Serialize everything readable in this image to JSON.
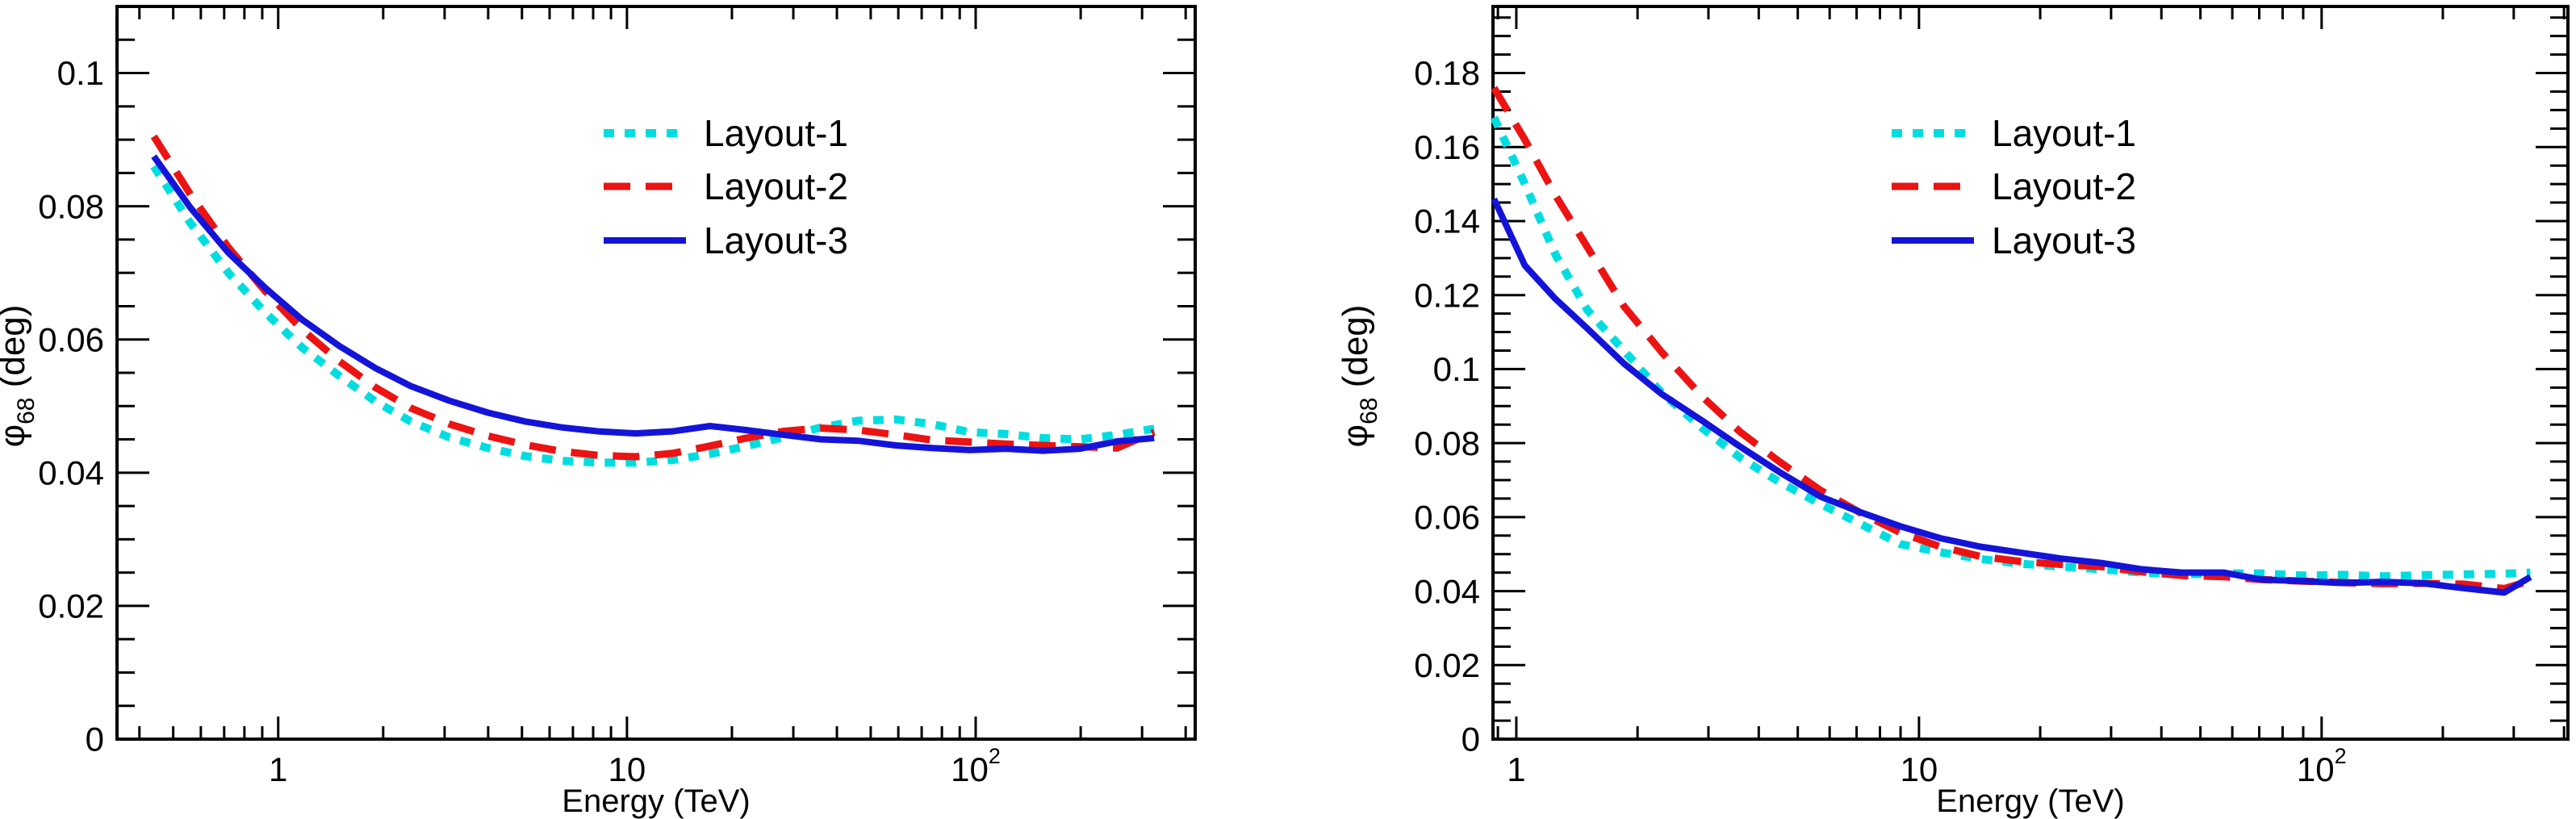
{
  "page": {
    "background": "#ffffff"
  },
  "chart_data": [
    {
      "type": "line",
      "panel": "left",
      "title": "",
      "xlabel": "Energy (TeV)",
      "ylabel": {
        "symbol": "φ",
        "subscript": "68",
        "unit": " (deg)"
      },
      "x_scale": "log",
      "xlim": [
        0.345,
        426
      ],
      "ylim": [
        0,
        0.11
      ],
      "grid": false,
      "legend_position": "upper-middle",
      "x_major_ticks": [
        {
          "v": 1,
          "base": "1",
          "exp": ""
        },
        {
          "v": 10,
          "base": "10",
          "exp": ""
        },
        {
          "v": 100,
          "base": "10",
          "exp": "2"
        }
      ],
      "y_major_step": 0.02,
      "y_minor_step": 0.005,
      "y_labels": [
        {
          "v": 0,
          "t": "0"
        },
        {
          "v": 0.02,
          "t": "0.02"
        },
        {
          "v": 0.04,
          "t": "0.04"
        },
        {
          "v": 0.06,
          "t": "0.06"
        },
        {
          "v": 0.08,
          "t": "0.08"
        },
        {
          "v": 0.1,
          "t": "0.1"
        }
      ],
      "x": [
        0.44,
        0.56,
        0.72,
        0.92,
        1.17,
        1.5,
        1.9,
        2.4,
        3.1,
        4.0,
        5.1,
        6.5,
        8.3,
        10.6,
        13.5,
        17.3,
        22,
        28,
        36,
        46,
        59,
        75,
        96,
        122,
        156,
        199,
        254,
        325
      ],
      "series": [
        {
          "name": "Layout-1",
          "color": "#00DDE0",
          "style": "dotted",
          "values": [
            0.086,
            0.0775,
            0.07,
            0.064,
            0.0588,
            0.0545,
            0.0507,
            0.0477,
            0.0453,
            0.0437,
            0.0425,
            0.0418,
            0.0415,
            0.0415,
            0.0419,
            0.0428,
            0.044,
            0.0453,
            0.0468,
            0.0478,
            0.048,
            0.0473,
            0.0461,
            0.0458,
            0.0452,
            0.045,
            0.0457,
            0.0466
          ]
        },
        {
          "name": "Layout-2",
          "color": "#EC1313",
          "style": "dashed",
          "values": [
            0.0905,
            0.0818,
            0.0738,
            0.0672,
            0.0615,
            0.0567,
            0.0528,
            0.0497,
            0.0473,
            0.0455,
            0.0442,
            0.0432,
            0.0426,
            0.0424,
            0.0429,
            0.044,
            0.0452,
            0.0462,
            0.0467,
            0.0464,
            0.0457,
            0.0449,
            0.0446,
            0.0443,
            0.0441,
            0.0439,
            0.0437,
            0.0461
          ]
        },
        {
          "name": "Layout-3",
          "color": "#1414D9",
          "style": "solid",
          "values": [
            0.0875,
            0.0798,
            0.073,
            0.0677,
            0.063,
            0.059,
            0.0557,
            0.053,
            0.0508,
            0.049,
            0.0477,
            0.0468,
            0.0462,
            0.0459,
            0.0462,
            0.047,
            0.0464,
            0.0457,
            0.045,
            0.0448,
            0.0441,
            0.0437,
            0.0434,
            0.0436,
            0.0433,
            0.0436,
            0.0447,
            0.0452
          ]
        }
      ]
    },
    {
      "type": "line",
      "panel": "right",
      "title": "",
      "xlabel": "Energy (TeV)",
      "ylabel": {
        "symbol": "φ",
        "subscript": "68",
        "unit": " (deg)"
      },
      "x_scale": "log",
      "xlim": [
        0.875,
        409
      ],
      "ylim": [
        0,
        0.198
      ],
      "grid": false,
      "legend_position": "upper-middle",
      "x_major_ticks": [
        {
          "v": 1,
          "base": "1",
          "exp": ""
        },
        {
          "v": 10,
          "base": "10",
          "exp": ""
        },
        {
          "v": 100,
          "base": "10",
          "exp": "2"
        }
      ],
      "y_major_step": 0.02,
      "y_minor_step": 0.005,
      "y_labels": [
        {
          "v": 0,
          "t": "0"
        },
        {
          "v": 0.02,
          "t": "0.02"
        },
        {
          "v": 0.04,
          "t": "0.04"
        },
        {
          "v": 0.06,
          "t": "0.06"
        },
        {
          "v": 0.08,
          "t": "0.08"
        },
        {
          "v": 0.1,
          "t": "0.1"
        },
        {
          "v": 0.12,
          "t": "0.12"
        },
        {
          "v": 0.14,
          "t": "0.14"
        },
        {
          "v": 0.16,
          "t": "0.16"
        },
        {
          "v": 0.18,
          "t": "0.18"
        }
      ],
      "x": [
        0.88,
        1.05,
        1.25,
        1.5,
        1.85,
        2.3,
        2.9,
        3.6,
        4.5,
        5.7,
        7.2,
        9.0,
        11.3,
        14.2,
        17.9,
        22.5,
        28.4,
        35.7,
        45,
        57,
        71,
        90,
        113,
        142,
        179,
        225,
        284,
        330
      ],
      "series": [
        {
          "name": "Layout-1",
          "color": "#00DDE0",
          "style": "dotted",
          "values": [
            0.168,
            0.15,
            0.131,
            0.116,
            0.105,
            0.0935,
            0.084,
            0.076,
            0.0695,
            0.0635,
            0.058,
            0.0527,
            0.0505,
            0.0487,
            0.0474,
            0.0466,
            0.0459,
            0.045,
            0.0445,
            0.0448,
            0.0448,
            0.0442,
            0.0444,
            0.044,
            0.0443,
            0.0445,
            0.0447,
            0.045
          ]
        },
        {
          "name": "Layout-2",
          "color": "#EC1313",
          "style": "dashed",
          "values": [
            0.176,
            0.162,
            0.147,
            0.133,
            0.117,
            0.1045,
            0.0925,
            0.083,
            0.075,
            0.0672,
            0.061,
            0.0558,
            0.052,
            0.0494,
            0.048,
            0.0472,
            0.0466,
            0.0452,
            0.0442,
            0.0439,
            0.0431,
            0.0427,
            0.0423,
            0.042,
            0.0421,
            0.0419,
            0.0407,
            0.0428
          ]
        },
        {
          "name": "Layout-3",
          "color": "#1414D9",
          "style": "solid",
          "values": [
            0.146,
            0.128,
            0.119,
            0.111,
            0.1015,
            0.0932,
            0.086,
            0.079,
            0.0722,
            0.0655,
            0.0612,
            0.0575,
            0.0543,
            0.052,
            0.0504,
            0.0488,
            0.0476,
            0.0459,
            0.045,
            0.045,
            0.0431,
            0.0427,
            0.0422,
            0.0425,
            0.0421,
            0.0408,
            0.0396,
            0.0438
          ]
        }
      ]
    }
  ]
}
